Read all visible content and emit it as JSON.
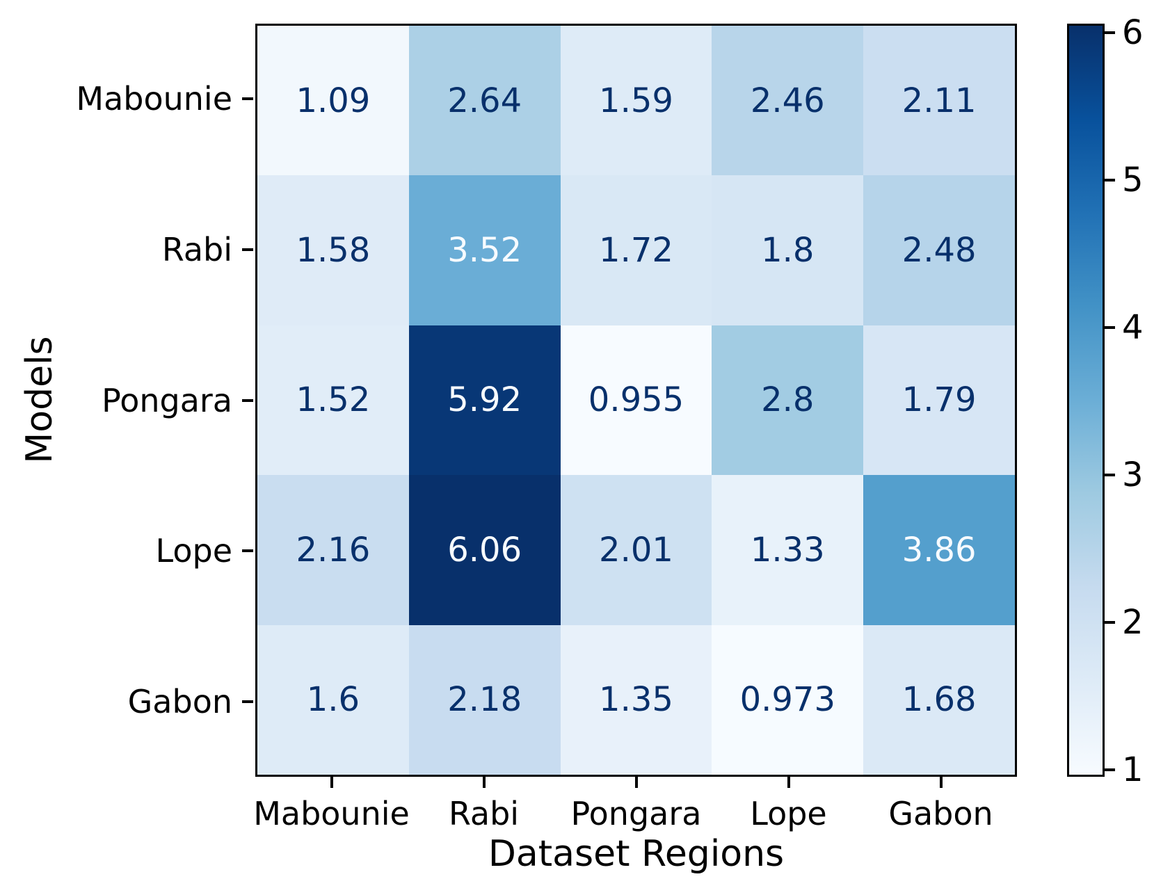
{
  "figure": {
    "background": "#ffffff",
    "spine_color": "#000000",
    "tick_color": "#000000"
  },
  "chart_data": {
    "type": "heatmap",
    "title": "",
    "xlabel": "Dataset Regions",
    "ylabel": "Models",
    "rows": [
      "Mabounie",
      "Rabi",
      "Pongara",
      "Lope",
      "Gabon"
    ],
    "columns": [
      "Mabounie",
      "Rabi",
      "Pongara",
      "Lope",
      "Gabon"
    ],
    "values": [
      [
        1.09,
        2.64,
        1.59,
        2.46,
        2.11
      ],
      [
        1.58,
        3.52,
        1.72,
        1.8,
        2.48
      ],
      [
        1.52,
        5.92,
        0.955,
        2.8,
        1.79
      ],
      [
        2.16,
        6.06,
        2.01,
        1.33,
        3.86
      ],
      [
        1.6,
        2.18,
        1.35,
        0.973,
        1.68
      ]
    ],
    "labels": [
      [
        "1.09",
        "2.64",
        "1.59",
        "2.46",
        "2.11"
      ],
      [
        "1.58",
        "3.52",
        "1.72",
        "1.8",
        "2.48"
      ],
      [
        "1.52",
        "5.92",
        "0.955",
        "2.8",
        "1.79"
      ],
      [
        "2.16",
        "6.06",
        "2.01",
        "1.33",
        "3.86"
      ],
      [
        "1.6",
        "2.18",
        "1.35",
        "0.973",
        "1.68"
      ]
    ],
    "vmin": 0.955,
    "vmax": 6.06,
    "colormap": {
      "name": "Blues",
      "stops": [
        "#f7fbff",
        "#deebf7",
        "#c6dbef",
        "#9ecae1",
        "#6baed6",
        "#4292c6",
        "#2171b5",
        "#08519c",
        "#08306b"
      ]
    },
    "annotation_colors": {
      "dark": "#08306b",
      "light": "#f7fbff"
    },
    "colorbar": {
      "ticks": [
        6,
        5,
        4,
        3,
        2,
        1
      ],
      "label": ""
    },
    "grid": false,
    "legend": false
  }
}
